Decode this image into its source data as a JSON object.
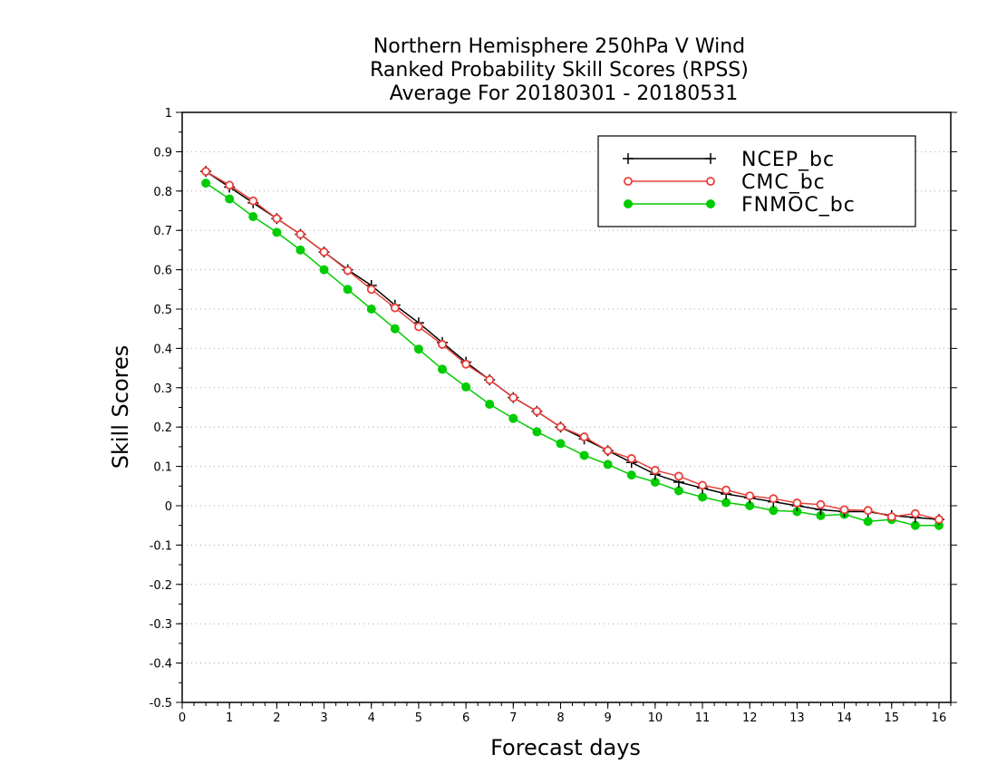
{
  "chart_data": {
    "type": "line",
    "title_lines": [
      "Northern Hemisphere 250hPa V Wind",
      "Ranked Probability Skill Scores (RPSS)",
      "Average For 20180301 - 20180531"
    ],
    "xlabel": "Forecast days",
    "ylabel": "Skill Scores",
    "xlim": [
      0,
      16.25
    ],
    "ylim": [
      -0.5,
      1
    ],
    "xticks": [
      0,
      1,
      2,
      3,
      4,
      5,
      6,
      7,
      8,
      9,
      10,
      11,
      12,
      13,
      14,
      15,
      16
    ],
    "yticks": [
      1,
      0.9,
      0.8,
      0.7,
      0.6,
      0.5,
      0.4,
      0.3,
      0.2,
      0.1,
      0,
      -0.1,
      -0.2,
      -0.3,
      -0.4,
      -0.5
    ],
    "ytick_labels": [
      "1",
      "0.9",
      "0.8",
      "0.7",
      "0.6",
      "0.5",
      "0.4",
      "0.3",
      "0.2",
      "0.1",
      "0",
      "-0.1",
      "-0.2",
      "-0.3",
      "-0.4",
      "-0.5"
    ],
    "grid": "horizontal dotted",
    "legend_position": "top-right",
    "x": [
      0.5,
      1,
      1.5,
      2,
      2.5,
      3,
      3.5,
      4,
      4.5,
      5,
      5.5,
      6,
      6.5,
      7,
      7.5,
      8,
      8.5,
      9,
      9.5,
      10,
      10.5,
      11,
      11.5,
      12,
      12.5,
      13,
      13.5,
      14,
      14.5,
      15,
      15.5,
      16
    ],
    "series": [
      {
        "name": "NCEP_bc",
        "color": "#000000",
        "marker": "plus",
        "values": [
          0.85,
          0.81,
          0.77,
          0.73,
          0.69,
          0.645,
          0.6,
          0.56,
          0.51,
          0.465,
          0.415,
          0.365,
          0.32,
          0.275,
          0.24,
          0.2,
          0.17,
          0.14,
          0.11,
          0.08,
          0.06,
          0.045,
          0.03,
          0.02,
          0.01,
          0.0,
          -0.01,
          -0.015,
          -0.015,
          -0.025,
          -0.03,
          -0.035
        ]
      },
      {
        "name": "CMC_bc",
        "color": "#e8403a",
        "marker": "open-circle",
        "values": [
          0.85,
          0.815,
          0.775,
          0.73,
          0.69,
          0.645,
          0.598,
          0.55,
          0.503,
          0.455,
          0.41,
          0.36,
          0.32,
          0.275,
          0.24,
          0.2,
          0.175,
          0.14,
          0.12,
          0.09,
          0.075,
          0.052,
          0.04,
          0.025,
          0.018,
          0.007,
          0.003,
          -0.01,
          -0.012,
          -0.028,
          -0.02,
          -0.035
        ]
      },
      {
        "name": "FNMOC_bc",
        "color": "#00cc00",
        "marker": "filled-circle",
        "values": [
          0.82,
          0.78,
          0.735,
          0.695,
          0.65,
          0.6,
          0.55,
          0.5,
          0.45,
          0.398,
          0.347,
          0.302,
          0.258,
          0.222,
          0.188,
          0.158,
          0.128,
          0.105,
          0.078,
          0.06,
          0.038,
          0.022,
          0.008,
          0.0,
          -0.012,
          -0.015,
          -0.025,
          -0.022,
          -0.04,
          -0.035,
          -0.05,
          -0.05
        ]
      }
    ]
  }
}
